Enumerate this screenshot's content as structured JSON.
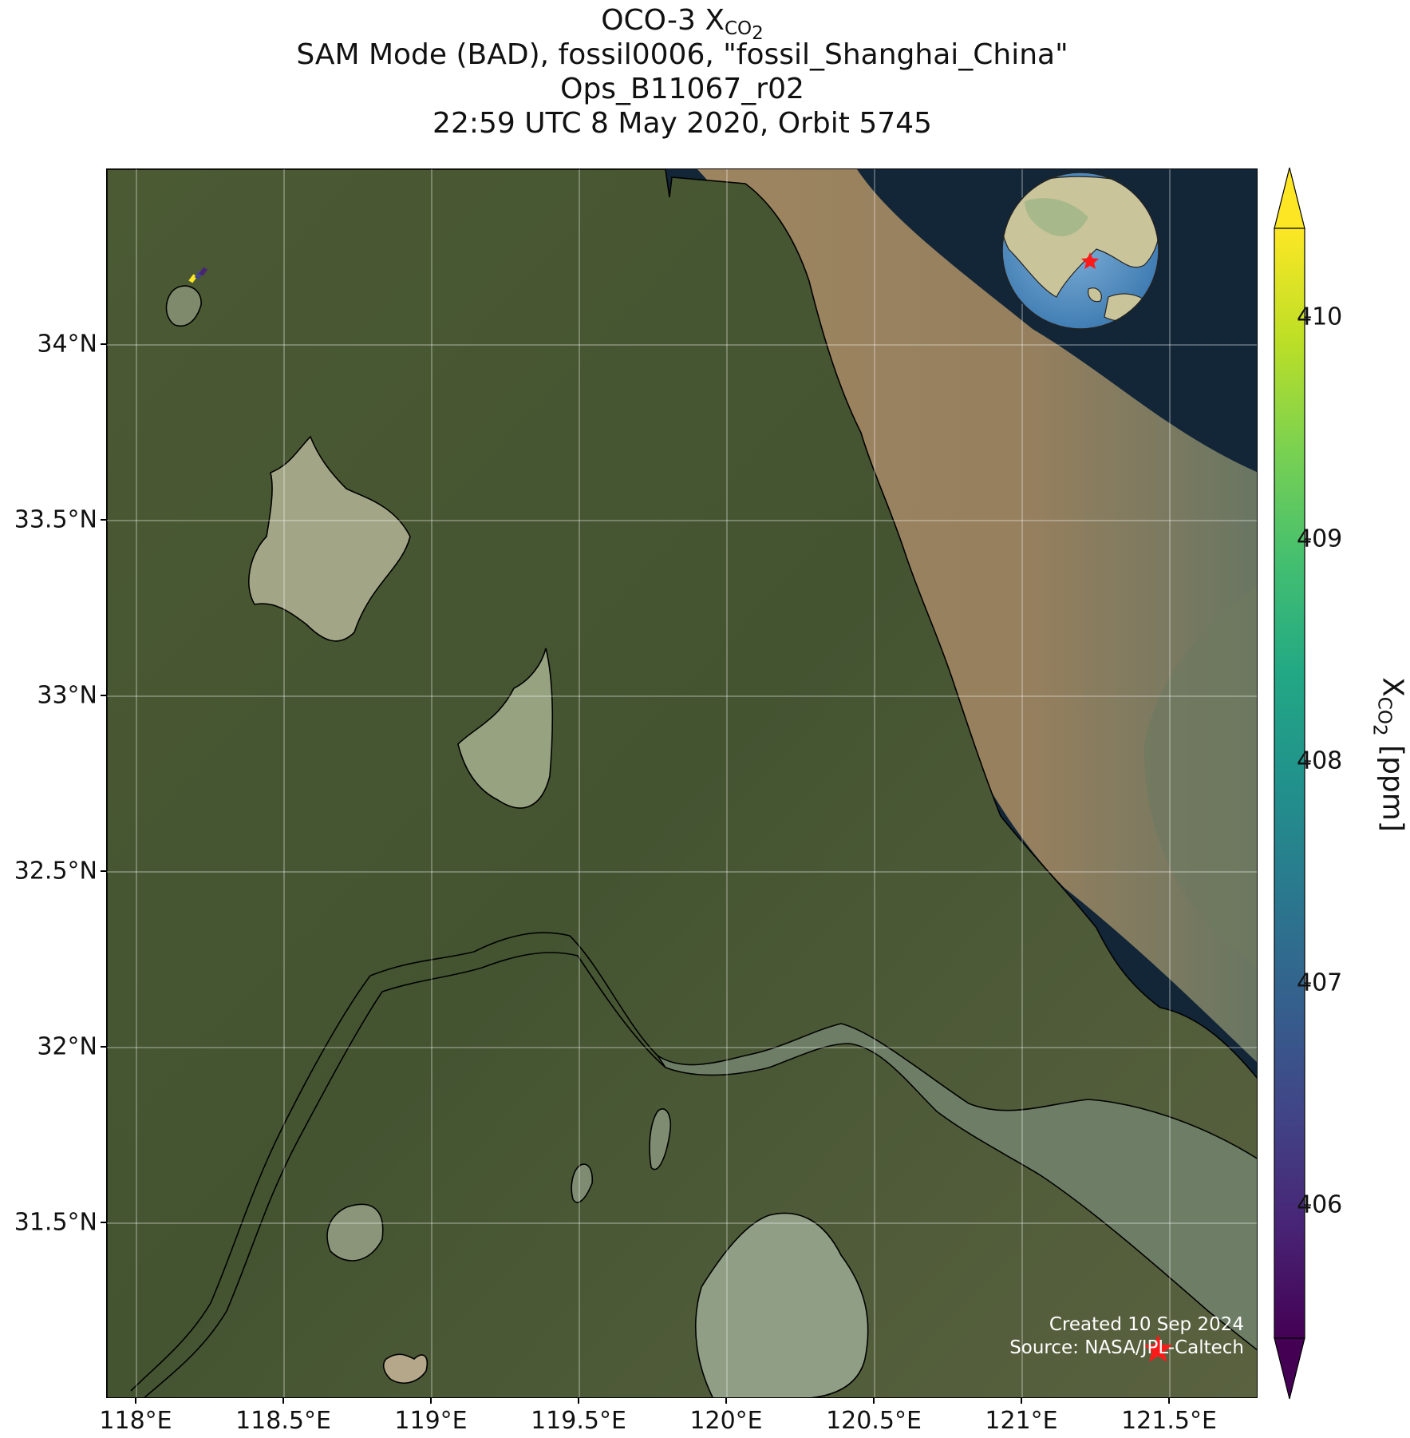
{
  "title": {
    "line1_main": "OCO-3 X",
    "line1_sub": "CO",
    "line1_subsub": "2",
    "line2": "SAM Mode (BAD), fossil0006, \"fossil_Shanghai_China\"",
    "line3": "Ops_B11067_r02",
    "line4": "22:59 UTC 8 May 2020, Orbit 5745"
  },
  "map": {
    "extent": {
      "lon_min": 117.9,
      "lon_max": 121.8,
      "lat_min": 31.0,
      "lat_max": 34.5
    },
    "lat_ticks": [
      {
        "value": 34.0,
        "label": "34°N"
      },
      {
        "value": 33.5,
        "label": "33.5°N"
      },
      {
        "value": 33.0,
        "label": "33°N"
      },
      {
        "value": 32.5,
        "label": "32.5°N"
      },
      {
        "value": 32.0,
        "label": "32°N"
      },
      {
        "value": 31.5,
        "label": "31.5°N"
      }
    ],
    "lon_ticks": [
      {
        "value": 118.0,
        "label": "118°E"
      },
      {
        "value": 118.5,
        "label": "118.5°E"
      },
      {
        "value": 119.0,
        "label": "119°E"
      },
      {
        "value": 119.5,
        "label": "119.5°E"
      },
      {
        "value": 120.0,
        "label": "120°E"
      },
      {
        "value": 120.5,
        "label": "120.5°E"
      },
      {
        "value": 121.0,
        "label": "121°E"
      },
      {
        "value": 121.5,
        "label": "121.5°E"
      }
    ],
    "grid": true,
    "target_marker": {
      "lon": 121.46,
      "lat": 31.14,
      "symbol": "star",
      "color": "#ff1a1a"
    },
    "soundings": [
      {
        "lon": 118.19,
        "lat": 34.19,
        "xco2": 410.3
      },
      {
        "lon": 118.21,
        "lat": 34.2,
        "xco2": 406.2
      },
      {
        "lon": 118.225,
        "lat": 34.21,
        "xco2": 405.8
      }
    ],
    "inset_globe": {
      "center_lon": 121.5,
      "center_lat": 31.2,
      "marker": "star",
      "marker_color": "#ff1a1a"
    },
    "colors": {
      "sea": "#122638",
      "land": "#4a5c32",
      "sediment": "#9c8560",
      "water": "#8e9a78",
      "coastline": "#000000"
    }
  },
  "credits": {
    "created": "Created 10 Sep 2024",
    "source": "Source: NASA/JPL-Caltech"
  },
  "colorbar": {
    "label_main": "X",
    "label_sub": "CO",
    "label_subsub": "2",
    "label_unit": " [ppm]",
    "min": 405.4,
    "max": 410.4,
    "extend": "both",
    "colormap": "viridis",
    "ticks": [
      {
        "value": 406,
        "label": "406"
      },
      {
        "value": 407,
        "label": "407"
      },
      {
        "value": 408,
        "label": "408"
      },
      {
        "value": 409,
        "label": "409"
      },
      {
        "value": 410,
        "label": "410"
      }
    ]
  }
}
